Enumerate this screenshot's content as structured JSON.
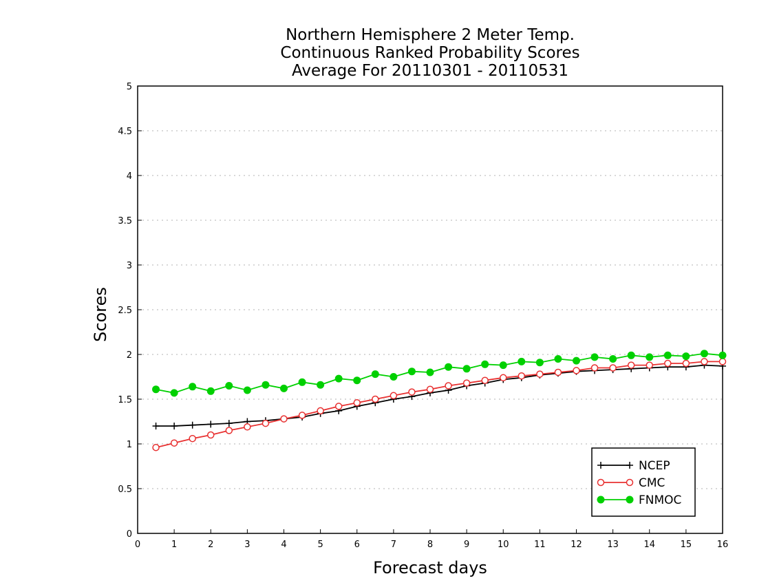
{
  "chart_data": {
    "type": "line",
    "title_lines": [
      "Northern Hemisphere 2 Meter Temp.",
      "Continuous Ranked Probability Scores",
      "Average For 20110301 - 20110531"
    ],
    "xlabel": "Forecast days",
    "ylabel": "Scores",
    "xlim": [
      0,
      16
    ],
    "ylim": [
      0,
      5
    ],
    "x_ticks": [
      0,
      1,
      2,
      3,
      4,
      5,
      6,
      7,
      8,
      9,
      10,
      11,
      12,
      13,
      14,
      15,
      16
    ],
    "y_ticks": [
      0,
      0.5,
      1,
      1.5,
      2,
      2.5,
      3,
      3.5,
      4,
      4.5,
      5
    ],
    "y_tick_labels": [
      "0",
      "0.5",
      "1",
      "1.5",
      "2",
      "2.5",
      "3",
      "3.5",
      "4",
      "4.5",
      "5"
    ],
    "grid": "horizontal dotted",
    "legend_position": "bottom-right",
    "x": [
      0.5,
      1,
      1.5,
      2,
      2.5,
      3,
      3.5,
      4,
      4.5,
      5,
      5.5,
      6,
      6.5,
      7,
      7.5,
      8,
      8.5,
      9,
      9.5,
      10,
      10.5,
      11,
      11.5,
      12,
      12.5,
      13,
      13.5,
      14,
      14.5,
      15,
      15.5,
      16
    ],
    "series": [
      {
        "name": "NCEP",
        "color": "#000000",
        "marker": "plus",
        "values": [
          1.2,
          1.2,
          1.21,
          1.22,
          1.23,
          1.25,
          1.26,
          1.28,
          1.3,
          1.34,
          1.37,
          1.42,
          1.46,
          1.5,
          1.53,
          1.57,
          1.6,
          1.65,
          1.68,
          1.72,
          1.74,
          1.77,
          1.79,
          1.81,
          1.82,
          1.83,
          1.84,
          1.85,
          1.86,
          1.86,
          1.88,
          1.87
        ]
      },
      {
        "name": "CMC",
        "color": "#e83030",
        "marker": "open-circle",
        "values": [
          0.96,
          1.01,
          1.06,
          1.1,
          1.15,
          1.19,
          1.23,
          1.28,
          1.32,
          1.37,
          1.42,
          1.46,
          1.5,
          1.54,
          1.58,
          1.61,
          1.65,
          1.68,
          1.71,
          1.74,
          1.76,
          1.78,
          1.8,
          1.82,
          1.85,
          1.85,
          1.88,
          1.88,
          1.9,
          1.9,
          1.92,
          1.92
        ]
      },
      {
        "name": "FNMOC",
        "color": "#00d000",
        "marker": "filled-circle",
        "values": [
          1.61,
          1.57,
          1.64,
          1.59,
          1.65,
          1.6,
          1.66,
          1.62,
          1.69,
          1.66,
          1.73,
          1.71,
          1.78,
          1.75,
          1.81,
          1.8,
          1.86,
          1.84,
          1.89,
          1.88,
          1.92,
          1.91,
          1.95,
          1.93,
          1.97,
          1.95,
          1.99,
          1.97,
          1.99,
          1.98,
          2.01,
          1.99
        ]
      }
    ]
  }
}
